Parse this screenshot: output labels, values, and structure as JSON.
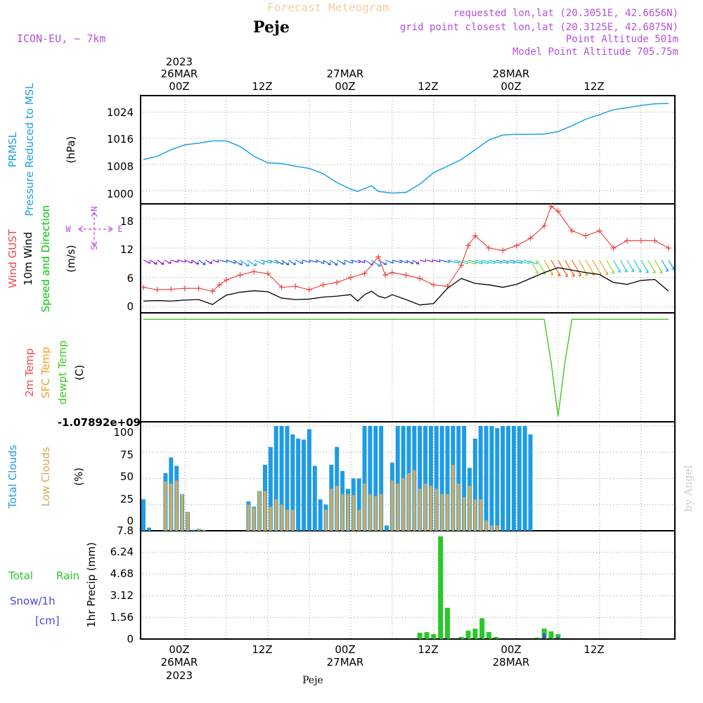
{
  "header": {
    "title": "Forecast Meteogram",
    "location": "Peje",
    "model": "ICON-EU, ~ 7km",
    "requested": "requested lon,lat (20.3051E, 42.6656N)",
    "gridpoint": "grid point closest lon,lat (20.3125E, 42.6875N)",
    "point_alt": "Point Altitude 501m",
    "model_alt": "Model Point Altitude 705.75m",
    "watermark": "by Angel",
    "footer": "Peje"
  },
  "time_axis": {
    "top_ticks": [
      "00Z",
      "12Z",
      "00Z",
      "12Z",
      "00Z",
      "12Z"
    ],
    "bottom_ticks": [
      "00Z",
      "12Z",
      "00Z",
      "12Z",
      "00Z",
      "12Z"
    ],
    "dates": [
      "26MAR",
      "27MAR",
      "28MAR"
    ],
    "year": "2023"
  },
  "labels": {
    "p1_a": "PRMSL",
    "p1_b": "Pressure Reduced to MSL",
    "p1_unit": "(hPa)",
    "p2_a": "Wind GUST",
    "p2_b": "10m Wind",
    "p2_c": "Speed and Direction",
    "p2_unit": "(m/s)",
    "compass_n": "N",
    "compass_s": "S",
    "compass_w": "W",
    "compass_e": "E",
    "p3_a": "2m Temp",
    "p3_b": "SFC Temp",
    "p3_c": "dewpt Temp",
    "p3_unit": "(C)",
    "p3_axis": "-1.07892e+09",
    "p4_a": "Total Clouds",
    "p4_b": "Low Clouds",
    "p4_unit": "(%)",
    "p5_a": "Total",
    "p5_b": "Rain",
    "p5_c": "Snow/1h",
    "p5_d": "[cm]",
    "p5_unit": "1hr Precip (mm)"
  },
  "colors": {
    "pressure": "#1ea0e6",
    "gust": "#f04646",
    "wind": "#000000",
    "label_green": "#00c800",
    "dewpoint": "#40c820",
    "temp_orange": "#f0a020",
    "cloud_total": "#1e9be6",
    "cloud_low": "#d2aa5a",
    "rain": "#28c828",
    "snow": "#4646e6",
    "purple": "#b450dc",
    "title": "#f0d0a0"
  },
  "chart_data": [
    {
      "type": "line",
      "name": "PRMSL",
      "x_hours": [
        0,
        2,
        4,
        6,
        8,
        10,
        12,
        14,
        16,
        18,
        20,
        22,
        24,
        26,
        28,
        30,
        31,
        33,
        34,
        36,
        38,
        40,
        42,
        44,
        46,
        48,
        50,
        52,
        54,
        56,
        58,
        60,
        62,
        64,
        66,
        68,
        70,
        72,
        74,
        76
      ],
      "values": [
        1009.5,
        1010.5,
        1012.5,
        1014,
        1014.5,
        1015.2,
        1015.2,
        1013.5,
        1010.5,
        1008.5,
        1008.3,
        1007.5,
        1006.8,
        1005.2,
        1002.5,
        1000.5,
        999.8,
        1001.5,
        999.8,
        999.3,
        999.5,
        1002,
        1005.5,
        1007.5,
        1009.5,
        1012.5,
        1015.5,
        1017,
        1017.2,
        1017.2,
        1017.3,
        1018,
        1019.8,
        1021.8,
        1023.2,
        1024.7,
        1025.3,
        1026,
        1026.5,
        1026.6
      ],
      "yticks": [
        1000,
        1008,
        1016,
        1024
      ],
      "ylim": [
        996,
        1029
      ]
    },
    {
      "type": "line",
      "name": "Wind GUST",
      "x_hours": [
        0,
        2,
        4,
        6,
        8,
        10,
        11,
        12,
        14,
        16,
        18,
        20,
        22,
        24,
        26,
        28,
        30,
        32,
        34,
        35,
        36,
        38,
        40,
        42,
        44,
        46,
        47,
        48,
        50,
        52,
        54,
        56,
        58,
        59,
        60,
        62,
        64,
        66,
        68,
        70,
        72,
        74,
        76
      ],
      "values": [
        4,
        3.5,
        3.6,
        3.8,
        3.8,
        3.2,
        4.5,
        5.5,
        6.5,
        7.2,
        6.8,
        4,
        4.2,
        3.5,
        4.5,
        5,
        6,
        6.8,
        10.2,
        6.5,
        7,
        6.5,
        5.8,
        4.5,
        4.2,
        8.5,
        12.5,
        14.5,
        12,
        11.5,
        12.5,
        14,
        16.5,
        20.5,
        19.5,
        15.5,
        14.5,
        15.5,
        12,
        13.5,
        13.5,
        13.5,
        12
      ],
      "yticks": [
        0,
        6,
        12,
        18
      ],
      "ylim": [
        -1.2,
        21
      ]
    },
    {
      "type": "line",
      "name": "10m Wind",
      "x_hours": [
        0,
        2,
        4,
        6,
        8,
        10,
        11,
        12,
        14,
        16,
        18,
        20,
        22,
        24,
        26,
        28,
        30,
        31,
        32,
        33,
        34,
        35,
        36,
        38,
        40,
        42,
        44,
        46,
        48,
        50,
        52,
        54,
        56,
        58,
        60,
        62,
        64,
        66,
        68,
        70,
        72,
        74,
        76
      ],
      "values": [
        1.2,
        1.3,
        1.2,
        1.4,
        1.5,
        0.5,
        1.5,
        2.4,
        3,
        3.3,
        3.1,
        1.8,
        1.5,
        1.6,
        2,
        2.2,
        2.5,
        1.2,
        2.5,
        3.2,
        2.2,
        1.8,
        2.5,
        1.5,
        0.4,
        0.7,
        3.8,
        5.8,
        4.8,
        4.5,
        4,
        4.6,
        5.8,
        7,
        8,
        7.5,
        7,
        6.6,
        5,
        4.6,
        5.4,
        5.6,
        3.2
      ],
      "yticks": [
        0,
        6,
        12,
        18
      ],
      "ylim": [
        -1.2,
        21
      ]
    },
    {
      "type": "line",
      "name": "dewpt Temp",
      "x_hours": [
        0,
        10,
        20,
        30,
        40,
        50,
        55,
        58,
        59,
        60,
        61,
        62,
        70,
        76
      ],
      "values": [
        0,
        0,
        0,
        0,
        0,
        0,
        0,
        0,
        -40,
        -90,
        -40,
        0,
        0,
        0
      ],
      "ylim": [
        -95,
        6
      ]
    },
    {
      "type": "bar",
      "name": "Total Clouds",
      "values": [
        30,
        3,
        0,
        0,
        55,
        70,
        62,
        35,
        18,
        1,
        2,
        1,
        0,
        0,
        0,
        0,
        0,
        0,
        0,
        28,
        23,
        38,
        63,
        80,
        100,
        100,
        100,
        92,
        88,
        87,
        97,
        62,
        30,
        25,
        63,
        80,
        57,
        40,
        50,
        50,
        100,
        100,
        100,
        100,
        5,
        65,
        100,
        100,
        100,
        100,
        100,
        100,
        100,
        100,
        100,
        100,
        100,
        100,
        100,
        60,
        88,
        100,
        100,
        100,
        98,
        100,
        100,
        100,
        100,
        100,
        92,
        0,
        0,
        0,
        0,
        0,
        0,
        0,
        0,
        0,
        0,
        0,
        0,
        0,
        0,
        0,
        0,
        0,
        0,
        0,
        0,
        0,
        0,
        0,
        0,
        0,
        0
      ],
      "yticks": [
        0,
        25,
        50,
        75,
        100
      ],
      "ylim": [
        0,
        104
      ]
    },
    {
      "type": "bar",
      "name": "Low Clouds",
      "values": [
        0,
        0,
        0,
        0,
        47,
        45,
        48,
        35,
        18,
        0,
        2,
        1,
        0,
        0,
        0,
        0,
        0,
        0,
        0,
        25,
        22,
        38,
        38,
        23,
        30,
        25,
        20,
        20,
        0,
        0,
        0,
        0,
        0,
        20,
        40,
        43,
        35,
        35,
        34,
        20,
        45,
        35,
        33,
        35,
        0,
        48,
        45,
        50,
        55,
        58,
        40,
        45,
        43,
        40,
        35,
        35,
        63,
        45,
        32,
        43,
        30,
        30,
        10,
        5,
        5,
        0,
        0,
        0,
        0,
        0,
        0,
        0,
        0,
        0,
        0,
        0,
        0,
        0,
        0,
        0,
        0,
        0,
        0,
        0,
        0,
        0,
        0,
        0,
        0,
        0,
        0,
        0,
        0,
        0,
        0,
        0,
        0
      ],
      "yticks": [
        0,
        25,
        50,
        75,
        100
      ],
      "ylim": [
        0,
        104
      ]
    },
    {
      "type": "bar",
      "name": "Total Rain",
      "values": [
        0,
        0,
        0,
        0,
        0,
        0,
        0,
        0,
        0,
        0,
        0,
        0,
        0,
        0,
        0,
        0,
        0,
        0,
        0,
        0,
        0,
        0,
        0,
        0,
        0,
        0,
        0,
        0,
        0,
        0,
        0,
        0,
        0,
        0,
        0,
        0,
        0,
        0,
        0,
        0,
        0.45,
        0.5,
        0.35,
        7.4,
        2.25,
        0,
        0.15,
        0.6,
        0.75,
        1.5,
        0.5,
        0.15,
        0,
        0,
        0,
        0,
        0,
        0.1,
        0.75,
        0.55,
        0.35,
        0,
        0,
        0,
        0,
        0,
        0,
        0,
        0,
        0,
        0,
        0,
        0,
        0,
        0,
        0,
        0
      ],
      "yticks": [
        0,
        1.56,
        3.12,
        4.68,
        6.24,
        7.8
      ],
      "ylim": [
        0,
        7.8
      ]
    },
    {
      "type": "bar",
      "name": "Snow/1h",
      "values": [
        0,
        0,
        0,
        0,
        0,
        0,
        0,
        0,
        0,
        0,
        0,
        0,
        0,
        0,
        0,
        0,
        0,
        0,
        0,
        0,
        0,
        0,
        0,
        0,
        0,
        0,
        0,
        0,
        0,
        0,
        0,
        0,
        0,
        0,
        0,
        0,
        0,
        0,
        0,
        0,
        0,
        0,
        0,
        0,
        0,
        0,
        0,
        0,
        0,
        0,
        0,
        0,
        0,
        0,
        0,
        0,
        0,
        0,
        0.4,
        0,
        0.15,
        0,
        0,
        0,
        0,
        0,
        0,
        0,
        0,
        0,
        0,
        0,
        0,
        0,
        0,
        0,
        0
      ],
      "ylim": [
        0,
        7.8
      ]
    }
  ]
}
